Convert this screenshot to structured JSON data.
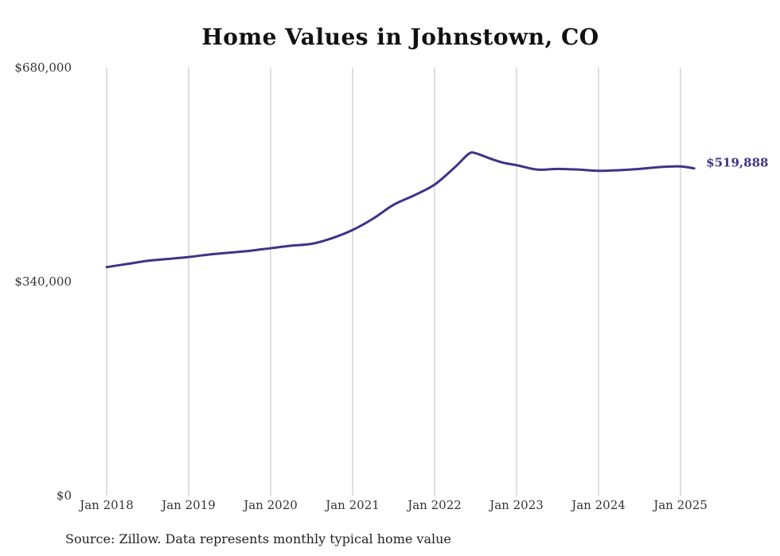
{
  "chart_data": {
    "type": "line",
    "title": "Home Values in Johnstown, CO",
    "xlabel": "",
    "ylabel": "",
    "ylim": [
      0,
      680000
    ],
    "y_ticks": [
      {
        "value": 0,
        "label": "$0"
      },
      {
        "value": 340000,
        "label": "$340,000"
      },
      {
        "value": 680000,
        "label": "$680,000"
      }
    ],
    "x_ticks": [
      {
        "date": "2018-01",
        "label": "Jan 2018"
      },
      {
        "date": "2019-01",
        "label": "Jan 2019"
      },
      {
        "date": "2020-01",
        "label": "Jan 2020"
      },
      {
        "date": "2021-01",
        "label": "Jan 2021"
      },
      {
        "date": "2022-01",
        "label": "Jan 2022"
      },
      {
        "date": "2023-01",
        "label": "Jan 2023"
      },
      {
        "date": "2024-01",
        "label": "Jan 2024"
      },
      {
        "date": "2025-01",
        "label": "Jan 2025"
      }
    ],
    "grid": {
      "vertical": true,
      "horizontal": false
    },
    "line_color": "#3d3488",
    "series": [
      {
        "end_label": "$519,888",
        "points": [
          {
            "x": "2018-01",
            "y": 363000
          },
          {
            "x": "2018-04",
            "y": 368000
          },
          {
            "x": "2018-07",
            "y": 373000
          },
          {
            "x": "2018-10",
            "y": 376000
          },
          {
            "x": "2019-01",
            "y": 379000
          },
          {
            "x": "2019-04",
            "y": 383000
          },
          {
            "x": "2019-07",
            "y": 386000
          },
          {
            "x": "2019-10",
            "y": 389000
          },
          {
            "x": "2020-01",
            "y": 393000
          },
          {
            "x": "2020-04",
            "y": 397000
          },
          {
            "x": "2020-07",
            "y": 400000
          },
          {
            "x": "2020-10",
            "y": 409000
          },
          {
            "x": "2021-01",
            "y": 422000
          },
          {
            "x": "2021-04",
            "y": 440000
          },
          {
            "x": "2021-07",
            "y": 462000
          },
          {
            "x": "2021-10",
            "y": 477000
          },
          {
            "x": "2022-01",
            "y": 494000
          },
          {
            "x": "2022-04",
            "y": 522000
          },
          {
            "x": "2022-06",
            "y": 543000
          },
          {
            "x": "2022-07",
            "y": 544000
          },
          {
            "x": "2022-09",
            "y": 536000
          },
          {
            "x": "2022-11",
            "y": 529000
          },
          {
            "x": "2023-01",
            "y": 525000
          },
          {
            "x": "2023-04",
            "y": 518000
          },
          {
            "x": "2023-07",
            "y": 519000
          },
          {
            "x": "2023-10",
            "y": 518000
          },
          {
            "x": "2024-01",
            "y": 516000
          },
          {
            "x": "2024-04",
            "y": 517000
          },
          {
            "x": "2024-07",
            "y": 519000
          },
          {
            "x": "2024-10",
            "y": 522000
          },
          {
            "x": "2025-01",
            "y": 523000
          },
          {
            "x": "2025-03",
            "y": 519888
          }
        ]
      }
    ]
  },
  "source_note": "Source: Zillow. Data represents monthly typical home value"
}
